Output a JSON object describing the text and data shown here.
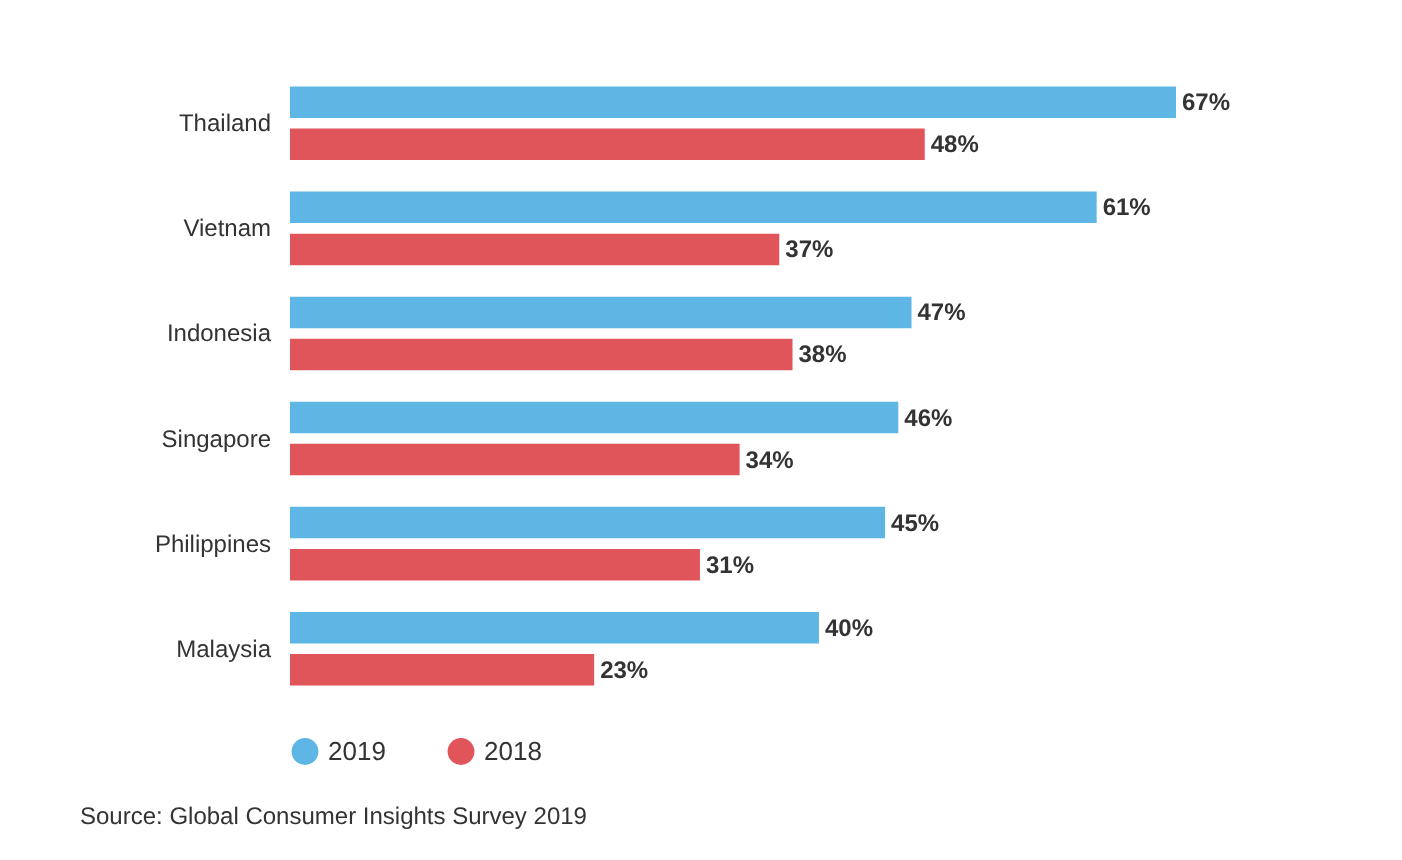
{
  "chart_data": {
    "type": "bar",
    "orientation": "horizontal",
    "categories": [
      "Thailand",
      "Vietnam",
      "Indonesia",
      "Singapore",
      "Philippines",
      "Malaysia"
    ],
    "series": [
      {
        "name": "2019",
        "color": "#5db6e4",
        "values": [
          67,
          61,
          47,
          46,
          45,
          40
        ],
        "value_labels": [
          "67%",
          "61%",
          "47%",
          "46%",
          "45%",
          "40%"
        ]
      },
      {
        "name": "2018",
        "color": "#e0555a",
        "values": [
          48,
          37,
          38,
          34,
          31,
          23
        ],
        "value_labels": [
          "48%",
          "37%",
          "38%",
          "34%",
          "31%",
          "23%"
        ]
      }
    ],
    "legend": "bottom",
    "annotations": [
      "Source: Global Consumer Insights Survey 2019"
    ]
  }
}
